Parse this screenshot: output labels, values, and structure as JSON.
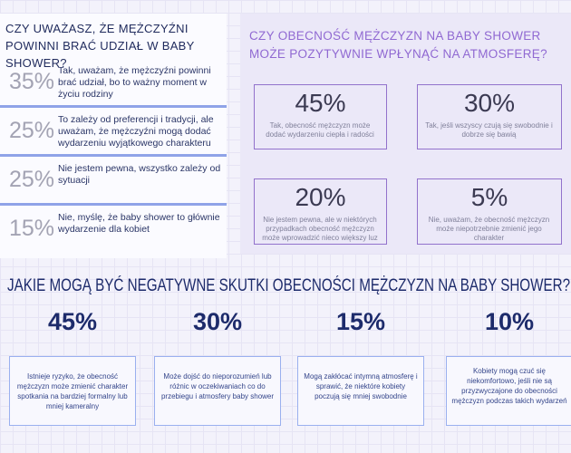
{
  "left": {
    "title": "CZY UWAŻASZ, ŻE MĘŻCZYŹNI POWINNI BRAĆ UDZIAŁ W BABY SHOWER?",
    "rows": [
      {
        "percent": "35%",
        "text": "Tak, uważam, że mężczyźni powinni brać udział, bo to ważny moment w życiu rodziny"
      },
      {
        "percent": "25%",
        "text": "To zależy od preferencji i tradycji, ale uważam, że mężczyźni mogą dodać wydarzeniu wyjątkowego charakteru"
      },
      {
        "percent": "25%",
        "text": "Nie jestem pewna, wszystko zależy od sytuacji"
      },
      {
        "percent": "15%",
        "text": "Nie, myślę, że baby shower to głównie wydarzenie dla kobiet"
      }
    ]
  },
  "right": {
    "title": "CZY OBECNOŚĆ MĘŻCZYZN NA BABY SHOWER MOŻE POZYTYWNIE WPŁYNĄĆ NA ATMOSFERĘ?",
    "boxes": [
      {
        "percent": "45%",
        "text": "Tak, obecność mężczyzn może dodać wydarzeniu ciepła i radości"
      },
      {
        "percent": "30%",
        "text": "Tak, jeśli wszyscy czują się swobodnie i dobrze się bawią"
      },
      {
        "percent": "20%",
        "text": "Nie jestem pewna, ale w niektórych przypadkach obecność mężczyzn może wprowadzić nieco większy luz"
      },
      {
        "percent": "5%",
        "text": "Nie, uważam, że obecność mężczyzn może niepotrzebnie zmienić jego charakter"
      }
    ]
  },
  "bottom": {
    "title": "JAKIE MOGĄ BYĆ NEGATYWNE SKUTKI OBECNOŚCI MĘŻCZYZN NA BABY SHOWER?",
    "items": [
      {
        "percent": "45%",
        "text": "Istnieje ryzyko, że obecność mężczyzn może zmienić charakter spotkania na bardziej formalny lub mniej kameralny"
      },
      {
        "percent": "30%",
        "text": "Może dojść do nieporozumień lub różnic w oczekiwaniach co do przebiegu i atmosfery baby shower"
      },
      {
        "percent": "15%",
        "text": "Mogą zakłócać intymną atmosferę i sprawić, że niektóre kobiety poczują się mniej swobodnie"
      },
      {
        "percent": "10%",
        "text": "Kobiety mogą czuć się niekomfortowo, jeśli nie są przyzwyczajone do obecności mężczyzn podczas takich wydarzeń"
      }
    ]
  }
}
